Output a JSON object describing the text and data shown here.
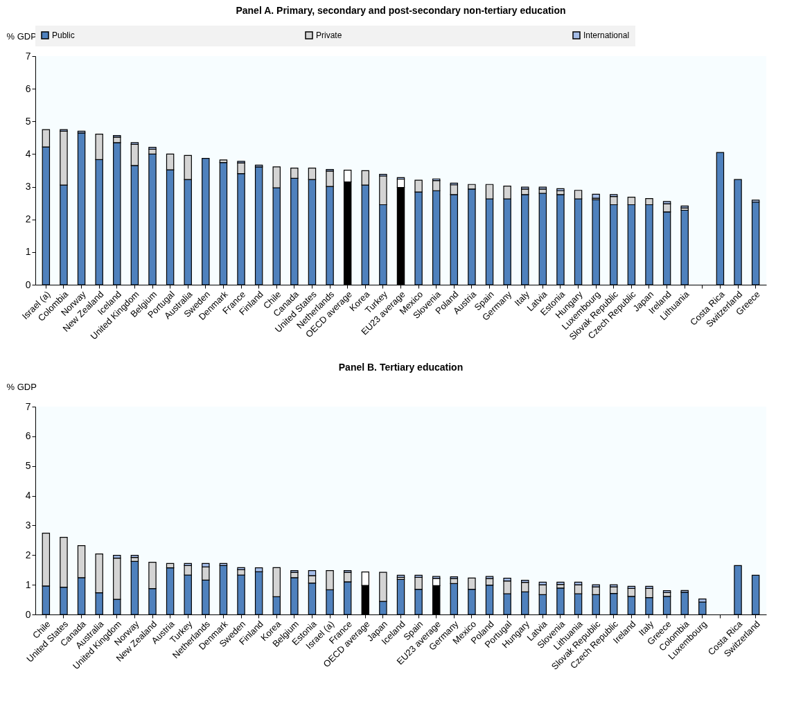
{
  "chart_data": [
    {
      "type": "bar",
      "title": "Panel A. Primary, secondary and post-secondary non-tertiary education",
      "ylabel": "% GDP",
      "stacked": true,
      "legend": "top",
      "ylim": [
        0,
        7
      ],
      "yticks": [
        0,
        1,
        2,
        3,
        4,
        5,
        6,
        7
      ],
      "categories": [
        "Israel (a)",
        "Colombia",
        "Norway",
        "New Zealand",
        "Iceland",
        "United Kingdom",
        "Belgium",
        "Portugal",
        "Australia",
        "Sweden",
        "Denmark",
        "France",
        "Finland",
        "Chile",
        "Canada",
        "United States",
        "Netherlands",
        "OECD average",
        "Korea",
        "Turkey",
        "EU23 average",
        "Mexico",
        "Slovenia",
        "Poland",
        "Austria",
        "Spain",
        "Germany",
        "Italy",
        "Latvia",
        "Estonia",
        "Hungary",
        "Luxembourg",
        "Slovak Republic",
        "Czech Republic",
        "Japan",
        "Ireland",
        "Lithuania",
        null,
        "Costa Rica",
        "Switzerland",
        "Greece"
      ],
      "series": [
        {
          "name": "Public",
          "color": "#4f81bd",
          "colors": [
            "#4f81bd",
            "#4f81bd",
            "#4f81bd",
            "#4f81bd",
            "#4f81bd",
            "#4f81bd",
            "#4f81bd",
            "#4f81bd",
            "#4f81bd",
            "#4f81bd",
            "#4f81bd",
            "#4f81bd",
            "#4f81bd",
            "#4f81bd",
            "#4f81bd",
            "#4f81bd",
            "#4f81bd",
            "#000000",
            "#4f81bd",
            "#4f81bd",
            "#000000",
            "#4f81bd",
            "#4f81bd",
            "#4f81bd",
            "#4f81bd",
            "#4f81bd",
            "#4f81bd",
            "#4f81bd",
            "#4f81bd",
            "#4f81bd",
            "#4f81bd",
            "#4f81bd",
            "#4f81bd",
            "#4f81bd",
            "#4f81bd",
            "#4f81bd",
            "#4f81bd",
            "#4f81bd",
            "#4f81bd",
            "#4f81bd",
            "#4f81bd"
          ],
          "values": [
            4.22,
            3.05,
            4.65,
            3.83,
            4.35,
            3.65,
            4.0,
            3.52,
            3.22,
            3.87,
            3.74,
            3.4,
            3.61,
            2.97,
            3.26,
            3.22,
            3.01,
            3.15,
            3.05,
            2.45,
            2.98,
            2.84,
            2.88,
            2.76,
            2.93,
            2.63,
            2.63,
            2.76,
            2.8,
            2.76,
            2.63,
            2.6,
            2.45,
            2.45,
            2.45,
            2.23,
            2.28,
            null,
            4.05,
            3.22,
            2.53
          ]
        },
        {
          "name": "Private",
          "color": "#d4d4d4",
          "colors": [
            "#d4d4d4",
            "#d4d4d4",
            "#d4d4d4",
            "#d4d4d4",
            "#d4d4d4",
            "#d4d4d4",
            "#d4d4d4",
            "#d4d4d4",
            "#d4d4d4",
            "#d4d4d4",
            "#d4d4d4",
            "#d4d4d4",
            "#d4d4d4",
            "#d4d4d4",
            "#d4d4d4",
            "#d4d4d4",
            "#d4d4d4",
            "#ffffff",
            "#d4d4d4",
            "#d4d4d4",
            "#ffffff",
            "#d4d4d4",
            "#d4d4d4",
            "#d4d4d4",
            "#d4d4d4",
            "#d4d4d4",
            "#d4d4d4",
            "#d4d4d4",
            "#d4d4d4",
            "#d4d4d4",
            "#d4d4d4",
            "#d4d4d4",
            "#d4d4d4",
            "#d4d4d4",
            "#d4d4d4",
            "#d4d4d4",
            "#d4d4d4",
            "#d4d4d4",
            "#d4d4d4",
            "#d4d4d4",
            "#d4d4d4"
          ],
          "values": [
            0.53,
            1.65,
            null,
            0.78,
            0.17,
            0.65,
            0.15,
            0.48,
            0.74,
            null,
            0.08,
            0.33,
            null,
            0.64,
            0.31,
            0.35,
            0.47,
            0.36,
            0.44,
            0.88,
            0.25,
            0.36,
            0.31,
            0.3,
            0.14,
            0.44,
            0.39,
            0.17,
            0.13,
            0.12,
            0.26,
            0.05,
            0.25,
            0.23,
            0.19,
            0.25,
            0.07,
            null,
            null,
            null,
            null
          ]
        },
        {
          "name": "International",
          "color": "#a5bde8",
          "values": [
            null,
            0.05,
            0.05,
            null,
            0.05,
            0.05,
            0.06,
            null,
            null,
            null,
            null,
            0.05,
            0.05,
            null,
            null,
            null,
            0.05,
            null,
            null,
            0.05,
            0.05,
            null,
            0.05,
            0.05,
            null,
            null,
            null,
            0.06,
            0.06,
            0.06,
            null,
            0.12,
            0.06,
            null,
            null,
            0.07,
            0.06,
            null,
            null,
            null,
            0.06
          ]
        }
      ]
    },
    {
      "type": "bar",
      "title": "Panel B. Tertiary education",
      "ylabel": "% GDP",
      "stacked": true,
      "ylim": [
        0,
        7
      ],
      "yticks": [
        0,
        1,
        2,
        3,
        4,
        5,
        6,
        7
      ],
      "categories": [
        "Chile",
        "United States",
        "Canada",
        "Australia",
        "United Kingdom",
        "Norway",
        "New Zealand",
        "Austria",
        "Turkey",
        "Netherlands",
        "Denmark",
        "Sweden",
        "Finland",
        "Korea",
        "Belgium",
        "Estonia",
        "Israel (a)",
        "France",
        "OECD average",
        "Japan",
        "Iceland",
        "Spain",
        "EU23 average",
        "Germany",
        "Mexico",
        "Poland",
        "Portugal",
        "Hungary",
        "Latvia",
        "Slovenia",
        "Lithuania",
        "Slovak Republic",
        "Czech Republic",
        "Ireland",
        "Italy",
        "Greece",
        "Colombia",
        "Luxembourg",
        null,
        "Costa Rica",
        "Switzerland"
      ],
      "series": [
        {
          "color": "#4f81bd",
          "colors": [
            "#4f81bd",
            "#4f81bd",
            "#4f81bd",
            "#4f81bd",
            "#4f81bd",
            "#4f81bd",
            "#4f81bd",
            "#4f81bd",
            "#4f81bd",
            "#4f81bd",
            "#4f81bd",
            "#4f81bd",
            "#4f81bd",
            "#4f81bd",
            "#4f81bd",
            "#4f81bd",
            "#4f81bd",
            "#4f81bd",
            "#000000",
            "#4f81bd",
            "#4f81bd",
            "#4f81bd",
            "#000000",
            "#4f81bd",
            "#4f81bd",
            "#4f81bd",
            "#4f81bd",
            "#4f81bd",
            "#4f81bd",
            "#4f81bd",
            "#4f81bd",
            "#4f81bd",
            "#4f81bd",
            "#4f81bd",
            "#4f81bd",
            "#4f81bd",
            "#4f81bd",
            "#4f81bd",
            "#4f81bd",
            "#4f81bd",
            "#4f81bd"
          ],
          "values": [
            0.96,
            0.92,
            1.24,
            0.73,
            0.51,
            1.79,
            0.87,
            1.57,
            1.33,
            1.16,
            1.65,
            1.33,
            1.44,
            0.6,
            1.24,
            1.06,
            0.83,
            1.1,
            0.98,
            0.44,
            1.18,
            0.85,
            0.97,
            1.04,
            0.85,
            0.99,
            0.7,
            0.76,
            0.67,
            0.89,
            0.7,
            0.67,
            0.71,
            0.61,
            0.57,
            0.61,
            0.75,
            0.42,
            null,
            1.65,
            1.32
          ]
        },
        {
          "color": "#d4d4d4",
          "colors": [
            "#d4d4d4",
            "#d4d4d4",
            "#d4d4d4",
            "#d4d4d4",
            "#d4d4d4",
            "#d4d4d4",
            "#d4d4d4",
            "#d4d4d4",
            "#d4d4d4",
            "#d4d4d4",
            "#d4d4d4",
            "#d4d4d4",
            "#d4d4d4",
            "#d4d4d4",
            "#d4d4d4",
            "#d4d4d4",
            "#d4d4d4",
            "#d4d4d4",
            "#ffffff",
            "#d4d4d4",
            "#d4d4d4",
            "#d4d4d4",
            "#ffffff",
            "#d4d4d4",
            "#d4d4d4",
            "#d4d4d4",
            "#d4d4d4",
            "#d4d4d4",
            "#d4d4d4",
            "#d4d4d4",
            "#d4d4d4",
            "#d4d4d4",
            "#d4d4d4",
            "#d4d4d4",
            "#d4d4d4",
            "#d4d4d4",
            "#d4d4d4",
            "#d4d4d4",
            "#d4d4d4",
            "#d4d4d4",
            "#d4d4d4"
          ],
          "values": [
            1.78,
            1.68,
            1.08,
            1.31,
            1.39,
            0.13,
            0.89,
            0.15,
            0.32,
            0.44,
            null,
            0.18,
            null,
            0.98,
            0.18,
            0.25,
            0.65,
            0.32,
            0.45,
            0.98,
            0.07,
            0.4,
            0.24,
            0.17,
            0.38,
            0.22,
            0.43,
            0.32,
            0.33,
            0.12,
            0.3,
            0.26,
            0.22,
            0.27,
            0.31,
            0.13,
            null,
            null,
            null,
            null,
            null
          ]
        },
        {
          "color": "#a5bde8",
          "values": [
            null,
            null,
            null,
            null,
            0.09,
            0.07,
            null,
            null,
            0.07,
            0.12,
            0.07,
            0.07,
            0.13,
            null,
            0.06,
            0.17,
            null,
            0.06,
            null,
            null,
            0.07,
            0.07,
            0.07,
            0.06,
            null,
            0.07,
            0.09,
            0.07,
            0.09,
            0.08,
            0.09,
            0.07,
            0.07,
            0.07,
            0.07,
            0.06,
            0.06,
            0.1,
            null,
            null,
            null
          ]
        }
      ]
    }
  ]
}
